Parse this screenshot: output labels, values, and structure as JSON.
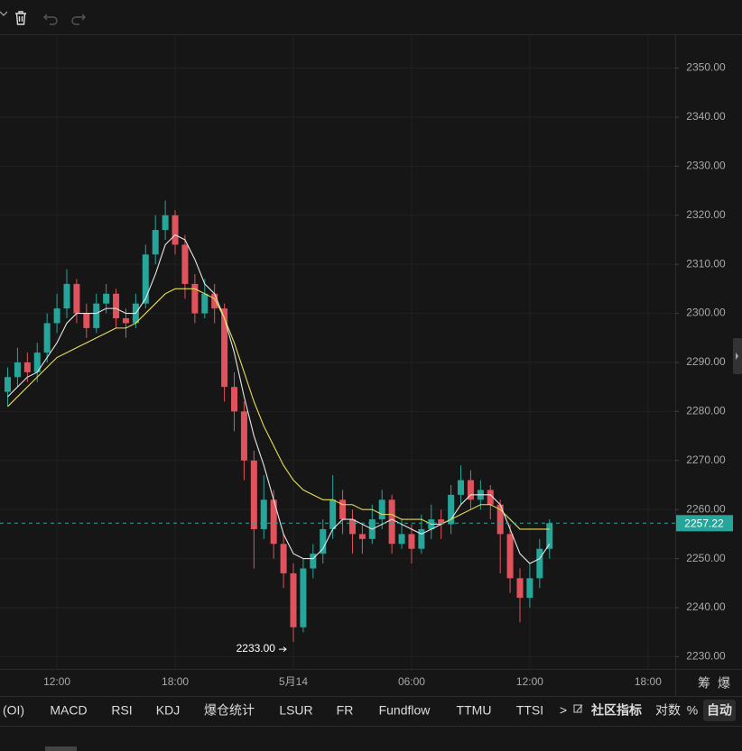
{
  "chart_data": {
    "type": "candlestick",
    "x": [
      -2.5,
      -2,
      -1.5,
      -1,
      -0.5,
      0,
      0.5,
      1,
      1.5,
      2,
      2.5,
      3,
      3.5,
      4,
      4.5,
      5,
      5.5,
      6,
      6.5,
      7,
      7.5,
      8,
      8.5,
      9,
      9.5,
      10,
      10.5,
      11,
      11.5,
      12,
      12.5,
      13,
      13.5,
      14,
      14.5,
      15,
      15.5,
      16,
      16.5,
      17,
      17.5,
      18,
      18.5,
      19,
      19.5,
      20,
      20.5,
      21,
      21.5,
      22,
      22.5,
      23,
      23.5,
      24,
      24.5,
      25
    ],
    "open": [
      2284,
      2287,
      2290,
      2288,
      2292,
      2298,
      2301,
      2306,
      2300,
      2297,
      2302,
      2304,
      2299,
      2298,
      2302,
      2312,
      2317,
      2320,
      2314,
      2306,
      2300,
      2304,
      2301,
      2285,
      2280,
      2270,
      2256,
      2262,
      2253,
      2247,
      2236,
      2248,
      2251,
      2256,
      2262,
      2258,
      2255,
      2254,
      2258,
      2262,
      2253,
      2255,
      2252,
      2256,
      2258,
      2257,
      2263,
      2266,
      2262,
      2264,
      2261,
      2255,
      2246,
      2242,
      2246,
      2252
    ],
    "high": [
      2289,
      2293,
      2292,
      2294,
      2300,
      2304,
      2309,
      2307,
      2302,
      2304,
      2306,
      2305,
      2301,
      2304,
      2314,
      2320,
      2323,
      2321,
      2316,
      2308,
      2307,
      2306,
      2302,
      2288,
      2282,
      2272,
      2267,
      2264,
      2255,
      2249,
      2250,
      2253,
      2258,
      2267,
      2264,
      2260,
      2257,
      2261,
      2264,
      2263,
      2258,
      2257,
      2259,
      2261,
      2260,
      2265,
      2269,
      2268,
      2266,
      2265,
      2262,
      2257,
      2248,
      2249,
      2254,
      2258
    ],
    "low": [
      2281,
      2285,
      2286,
      2286,
      2290,
      2296,
      2299,
      2298,
      2295,
      2296,
      2300,
      2297,
      2295,
      2297,
      2301,
      2310,
      2315,
      2312,
      2303,
      2298,
      2299,
      2298,
      2282,
      2276,
      2266,
      2248,
      2254,
      2250,
      2244,
      2233,
      2235,
      2246,
      2249,
      2254,
      2255,
      2251,
      2251,
      2253,
      2256,
      2251,
      2252,
      2249,
      2251,
      2254,
      2254,
      2255,
      2261,
      2260,
      2260,
      2258,
      2247,
      2243,
      2237,
      2240,
      2244,
      2250
    ],
    "close": [
      2287,
      2290,
      2288,
      2292,
      2298,
      2301,
      2306,
      2300,
      2297,
      2302,
      2304,
      2299,
      2298,
      2302,
      2312,
      2317,
      2320,
      2314,
      2306,
      2300,
      2304,
      2301,
      2285,
      2280,
      2270,
      2256,
      2262,
      2253,
      2247,
      2236,
      2248,
      2251,
      2256,
      2262,
      2258,
      2255,
      2254,
      2258,
      2262,
      2253,
      2255,
      2252,
      2256,
      2258,
      2257,
      2263,
      2266,
      2262,
      2264,
      2261,
      2255,
      2246,
      2242,
      2246,
      2252,
      2257.22
    ],
    "up_color": "#26a69a",
    "down_color": "#e0525c",
    "lines": [
      {
        "color": "#e6e6e6",
        "values": [
          2283,
          2285,
          2287,
          2288,
          2291,
          2294,
          2298,
          2300,
          2300,
          2300,
          2301,
          2301,
          2300,
          2300,
          2303,
          2308,
          2314,
          2316,
          2315,
          2311,
          2306,
          2304,
          2299,
          2292,
          2283,
          2275,
          2269,
          2262,
          2255,
          2251,
          2250,
          2250,
          2252,
          2256,
          2258,
          2258,
          2257,
          2256,
          2257,
          2258,
          2257,
          2256,
          2255,
          2256,
          2257,
          2258,
          2261,
          2263,
          2263,
          2263,
          2261,
          2256,
          2251,
          2249,
          2250,
          2253
        ]
      },
      {
        "color": "#e8de5a",
        "values": [
          2281,
          2283,
          2285,
          2287,
          2289,
          2291,
          2292,
          2293,
          2294,
          2295,
          2296,
          2297,
          2297,
          2298,
          2300,
          2302,
          2304,
          2305,
          2305,
          2305,
          2304,
          2303,
          2299,
          2294,
          2288,
          2282,
          2277,
          2273,
          2269,
          2266,
          2264,
          2263,
          2262,
          2262,
          2261,
          2261,
          2260,
          2260,
          2259,
          2259,
          2258,
          2258,
          2258,
          2257,
          2257,
          2258,
          2259,
          2260,
          2261,
          2261,
          2260,
          2258,
          2256,
          2256,
          2256,
          2256
        ]
      }
    ],
    "xlim": [
      -2.89,
      31.38
    ],
    "xticks": [
      {
        "value": 0,
        "label": "12:00"
      },
      {
        "value": 6,
        "label": "18:00"
      },
      {
        "value": 12,
        "label": "5月14"
      },
      {
        "value": 18,
        "label": "06:00"
      },
      {
        "value": 24,
        "label": "12:00"
      },
      {
        "value": 30,
        "label": "18:00"
      }
    ],
    "ylim": [
      2227.5,
      2356.9
    ],
    "yticks": [
      {
        "value": 2230,
        "label": "2230.00"
      },
      {
        "value": 2240,
        "label": "2240.00"
      },
      {
        "value": 2250,
        "label": "2250.00"
      },
      {
        "value": 2260,
        "label": "2260.00"
      },
      {
        "value": 2270,
        "label": "2270.00"
      },
      {
        "value": 2280,
        "label": "2280.00"
      },
      {
        "value": 2290,
        "label": "2290.00"
      },
      {
        "value": 2300,
        "label": "2300.00"
      },
      {
        "value": 2310,
        "label": "2310.00"
      },
      {
        "value": 2320,
        "label": "2320.00"
      },
      {
        "value": 2330,
        "label": "2330.00"
      },
      {
        "value": 2340,
        "label": "2340.00"
      },
      {
        "value": 2350,
        "label": "2350.00"
      }
    ],
    "grid": true,
    "last_price": 2257.22,
    "low_annotation": {
      "value": 2233,
      "label": "2233.00"
    }
  },
  "toolbar": {
    "tabs": [
      "(OI)",
      "MACD",
      "RSI",
      "KDJ",
      "爆仓统计",
      "LSUR",
      "FR",
      "Fundflow",
      "TTMU",
      "TTSI",
      ">",
      "社区指标",
      "对数",
      "%",
      "自动"
    ]
  },
  "axis_buttons": [
    "筹",
    "爆"
  ]
}
